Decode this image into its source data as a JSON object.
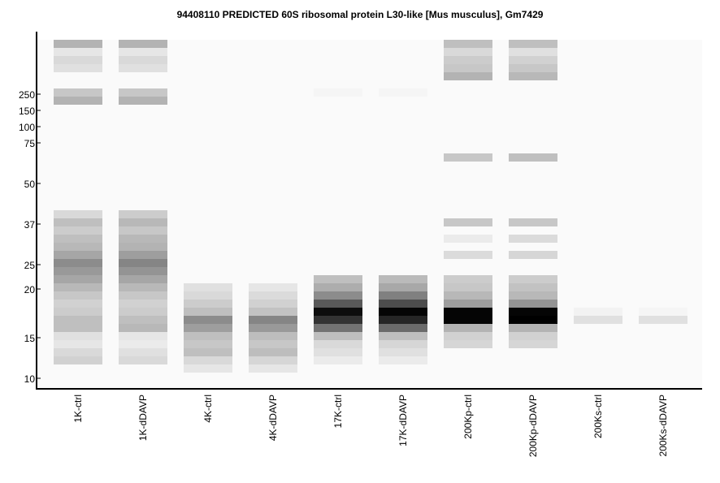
{
  "chart_data": {
    "type": "heatmap",
    "title": "94408110 PREDICTED  60S ribosomal protein L30-like [Mus musculus], Gm7429",
    "y_ticks": [
      "250",
      "150",
      "100",
      "75",
      "50",
      "37",
      "25",
      "20",
      "15",
      "10"
    ],
    "lanes": [
      {
        "label": "1K-ctrl",
        "bands": [
          0.7,
          0.9,
          0.85,
          0.88,
          0.98,
          0.98,
          0.78,
          0.7,
          0.99,
          0.99,
          0.99,
          0.99,
          0.99,
          0.99,
          0.99,
          0.99,
          0.99,
          0.99,
          0.99,
          0.99,
          0.99,
          0.85,
          0.75,
          0.8,
          0.75,
          0.72,
          0.65,
          0.55,
          0.6,
          0.65,
          0.72,
          0.78,
          0.82,
          0.8,
          0.75,
          0.75,
          0.88,
          0.9,
          0.85,
          0.82
        ]
      },
      {
        "label": "1K-dDAVP",
        "bands": [
          0.7,
          0.9,
          0.85,
          0.88,
          0.98,
          0.98,
          0.78,
          0.7,
          0.99,
          0.99,
          0.99,
          0.99,
          0.99,
          0.99,
          0.99,
          0.99,
          0.99,
          0.99,
          0.99,
          0.99,
          0.99,
          0.8,
          0.72,
          0.78,
          0.72,
          0.7,
          0.62,
          0.52,
          0.58,
          0.65,
          0.72,
          0.78,
          0.82,
          0.8,
          0.75,
          0.72,
          0.9,
          0.92,
          0.88,
          0.85
        ]
      },
      {
        "label": "4K-ctrl",
        "bands": [
          0.99,
          0.99,
          0.99,
          0.99,
          0.99,
          0.99,
          0.99,
          0.99,
          0.99,
          0.99,
          0.99,
          0.99,
          0.99,
          0.99,
          0.99,
          0.99,
          0.99,
          0.99,
          0.99,
          0.99,
          0.99,
          0.99,
          0.99,
          0.99,
          0.99,
          0.99,
          0.99,
          0.99,
          0.99,
          0.99,
          0.88,
          0.85,
          0.8,
          0.75,
          0.55,
          0.62,
          0.75,
          0.78,
          0.75,
          0.85,
          0.9
        ]
      },
      {
        "label": "4K-dDAVP",
        "bands": [
          0.99,
          0.99,
          0.99,
          0.99,
          0.99,
          0.99,
          0.99,
          0.99,
          0.99,
          0.99,
          0.99,
          0.99,
          0.99,
          0.99,
          0.99,
          0.99,
          0.99,
          0.99,
          0.99,
          0.99,
          0.99,
          0.99,
          0.99,
          0.99,
          0.99,
          0.99,
          0.99,
          0.99,
          0.99,
          0.99,
          0.9,
          0.86,
          0.82,
          0.76,
          0.52,
          0.6,
          0.74,
          0.78,
          0.74,
          0.84,
          0.9
        ]
      },
      {
        "label": "17K-ctrl",
        "bands": [
          0.99,
          0.99,
          0.99,
          0.99,
          0.99,
          0.99,
          0.96,
          0.99,
          0.99,
          0.99,
          0.99,
          0.99,
          0.99,
          0.99,
          0.99,
          0.99,
          0.99,
          0.99,
          0.99,
          0.99,
          0.99,
          0.99,
          0.99,
          0.99,
          0.99,
          0.99,
          0.99,
          0.99,
          0.99,
          0.75,
          0.68,
          0.55,
          0.35,
          0.05,
          0.2,
          0.45,
          0.75,
          0.85,
          0.88,
          0.92
        ]
      },
      {
        "label": "17K-dDAVP",
        "bands": [
          0.99,
          0.99,
          0.99,
          0.99,
          0.99,
          0.99,
          0.96,
          0.99,
          0.99,
          0.99,
          0.99,
          0.99,
          0.99,
          0.99,
          0.99,
          0.99,
          0.99,
          0.99,
          0.99,
          0.99,
          0.99,
          0.99,
          0.99,
          0.99,
          0.99,
          0.99,
          0.99,
          0.99,
          0.99,
          0.73,
          0.66,
          0.5,
          0.3,
          0.02,
          0.15,
          0.42,
          0.75,
          0.84,
          0.88,
          0.92
        ]
      },
      {
        "label": "200Kp-ctrl",
        "bands": [
          0.75,
          0.85,
          0.8,
          0.78,
          0.7,
          0.99,
          0.99,
          0.99,
          0.99,
          0.99,
          0.99,
          0.99,
          0.99,
          0.99,
          0.78,
          0.99,
          0.99,
          0.99,
          0.99,
          0.99,
          0.99,
          0.99,
          0.78,
          0.99,
          0.92,
          0.99,
          0.86,
          0.99,
          0.99,
          0.8,
          0.78,
          0.72,
          0.62,
          0.02,
          0.02,
          0.7,
          0.82,
          0.84,
          0.99,
          0.99
        ]
      },
      {
        "label": "200Kp-dDAVP",
        "bands": [
          0.75,
          0.88,
          0.82,
          0.78,
          0.72,
          0.99,
          0.99,
          0.99,
          0.99,
          0.99,
          0.99,
          0.99,
          0.99,
          0.99,
          0.75,
          0.99,
          0.99,
          0.99,
          0.99,
          0.99,
          0.99,
          0.99,
          0.78,
          0.99,
          0.86,
          0.99,
          0.84,
          0.99,
          0.99,
          0.8,
          0.76,
          0.72,
          0.58,
          0.02,
          0.0,
          0.7,
          0.82,
          0.84,
          0.99,
          0.99
        ]
      },
      {
        "label": "200Ks-ctrl",
        "bands": [
          0.99,
          0.99,
          0.99,
          0.99,
          0.99,
          0.99,
          0.99,
          0.99,
          0.99,
          0.99,
          0.99,
          0.99,
          0.99,
          0.99,
          0.99,
          0.99,
          0.99,
          0.99,
          0.99,
          0.99,
          0.99,
          0.99,
          0.99,
          0.99,
          0.99,
          0.99,
          0.99,
          0.99,
          0.99,
          0.99,
          0.99,
          0.99,
          0.99,
          0.95,
          0.88,
          0.99,
          0.99,
          0.99,
          0.99,
          0.99,
          0.99
        ]
      },
      {
        "label": "200Ks-dDAVP",
        "bands": [
          0.99,
          0.99,
          0.99,
          0.99,
          0.99,
          0.99,
          0.99,
          0.99,
          0.99,
          0.99,
          0.99,
          0.99,
          0.99,
          0.99,
          0.99,
          0.99,
          0.99,
          0.99,
          0.99,
          0.99,
          0.99,
          0.99,
          0.99,
          0.99,
          0.99,
          0.99,
          0.99,
          0.99,
          0.99,
          0.99,
          0.99,
          0.99,
          0.99,
          0.96,
          0.88,
          0.99,
          0.99,
          0.99,
          0.99,
          0.99,
          0.99
        ]
      }
    ]
  }
}
